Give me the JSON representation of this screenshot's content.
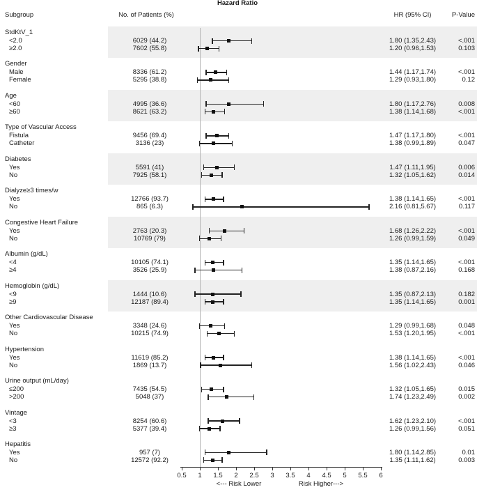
{
  "chart_data": {
    "type": "forest",
    "title": "Hazard Ratio",
    "columns": {
      "subgroup": "Subgroup",
      "patients": "No. of Patients (%)",
      "hr": "HR (95% CI)",
      "p": "P-Value"
    },
    "axis": {
      "min": 0.5,
      "max": 6,
      "ref_line": 1,
      "ticks": [
        "0.5",
        "1",
        "1.5",
        "2",
        "2.5",
        "3",
        "3.5",
        "4",
        "4.5",
        "5",
        "5.5",
        "6"
      ],
      "tick_values": [
        0.5,
        1,
        1.5,
        2,
        2.5,
        3,
        3.5,
        4,
        4.5,
        5,
        5.5,
        6
      ],
      "label_left": "<--- Risk Lower",
      "label_right": "Risk Higher--->"
    },
    "colors": {
      "band": "#efefef",
      "marker": "#111111",
      "ci": "#222222",
      "ref_line": "#b3b3b3"
    },
    "groups": [
      {
        "name": "StdKtV_1",
        "shaded": true,
        "rows": [
          {
            "label": "<2.0",
            "patients": "6029 (44.2)",
            "hr": 1.8,
            "lo": 1.35,
            "hi": 2.43,
            "hr_text": "1.80 (1.35,2.43)",
            "p": "<.001"
          },
          {
            "label": "≥2.0",
            "patients": "7602 (55.8)",
            "hr": 1.2,
            "lo": 0.96,
            "hi": 1.53,
            "hr_text": "1.20 (0.96,1.53)",
            "p": "0.103"
          }
        ]
      },
      {
        "name": "Gender",
        "shaded": false,
        "rows": [
          {
            "label": "Male",
            "patients": "8336 (61.2)",
            "hr": 1.44,
            "lo": 1.17,
            "hi": 1.74,
            "hr_text": "1.44 (1.17,1.74)",
            "p": "<.001"
          },
          {
            "label": "Female",
            "patients": "5295 (38.8)",
            "hr": 1.29,
            "lo": 0.93,
            "hi": 1.8,
            "hr_text": "1.29 (0.93,1.80)",
            "p": "0.12"
          }
        ]
      },
      {
        "name": "Age",
        "shaded": true,
        "rows": [
          {
            "label": "<60",
            "patients": "4995 (36.6)",
            "hr": 1.8,
            "lo": 1.17,
            "hi": 2.76,
            "hr_text": "1.80 (1.17,2.76)",
            "p": "0.008"
          },
          {
            "label": "≥60",
            "patients": "8621 (63.2)",
            "hr": 1.38,
            "lo": 1.14,
            "hi": 1.68,
            "hr_text": "1.38 (1.14,1.68)",
            "p": "<.001"
          }
        ]
      },
      {
        "name": "Type of Vascular Access",
        "shaded": false,
        "rows": [
          {
            "label": "Fistula",
            "patients": "9456 (69.4)",
            "hr": 1.47,
            "lo": 1.17,
            "hi": 1.8,
            "hr_text": "1.47 (1.17,1.80)",
            "p": "<.001"
          },
          {
            "label": "Catheter",
            "patients": "3136 (23)",
            "hr": 1.38,
            "lo": 0.99,
            "hi": 1.89,
            "hr_text": "1.38 (0.99,1.89)",
            "p": "0.047"
          }
        ]
      },
      {
        "name": "Diabetes",
        "shaded": true,
        "rows": [
          {
            "label": "Yes",
            "patients": "5591 (41)",
            "hr": 1.47,
            "lo": 1.11,
            "hi": 1.95,
            "hr_text": "1.47 (1.11,1.95)",
            "p": "0.006"
          },
          {
            "label": "No",
            "patients": "7925 (58.1)",
            "hr": 1.32,
            "lo": 1.05,
            "hi": 1.62,
            "hr_text": "1.32 (1.05,1.62)",
            "p": "0.014"
          }
        ]
      },
      {
        "name": "Dialyze≥3 times/w",
        "shaded": false,
        "rows": [
          {
            "label": "Yes",
            "patients": "12766 (93.7)",
            "hr": 1.38,
            "lo": 1.14,
            "hi": 1.65,
            "hr_text": "1.38 (1.14,1.65)",
            "p": "<.001"
          },
          {
            "label": "No",
            "patients": "865 (6.3)",
            "hr": 2.16,
            "lo": 0.81,
            "hi": 5.67,
            "hr_text": "2.16 (0.81,5.67)",
            "p": "0.117"
          }
        ]
      },
      {
        "name": "Congestive Heart Failure",
        "shaded": true,
        "rows": [
          {
            "label": "Yes",
            "patients": "2763 (20.3)",
            "hr": 1.68,
            "lo": 1.26,
            "hi": 2.22,
            "hr_text": "1.68 (1.26,2.22)",
            "p": "<.001"
          },
          {
            "label": "No",
            "patients": "10769 (79)",
            "hr": 1.26,
            "lo": 0.99,
            "hi": 1.59,
            "hr_text": "1.26 (0.99,1.59)",
            "p": "0.049"
          }
        ]
      },
      {
        "name": "Albumin (g/dL)",
        "shaded": false,
        "rows": [
          {
            "label": "<4",
            "patients": "10105 (74.1)",
            "hr": 1.35,
            "lo": 1.14,
            "hi": 1.65,
            "hr_text": "1.35 (1.14,1.65)",
            "p": "<.001"
          },
          {
            "label": "≥4",
            "patients": "3526 (25.9)",
            "hr": 1.38,
            "lo": 0.87,
            "hi": 2.16,
            "hr_text": "1.38 (0.87,2.16)",
            "p": "0.168"
          }
        ]
      },
      {
        "name": "Hemoglobin (g/dL)",
        "shaded": true,
        "rows": [
          {
            "label": "<9",
            "patients": "1444 (10.6)",
            "hr": 1.35,
            "lo": 0.87,
            "hi": 2.13,
            "hr_text": "1.35 (0.87,2.13)",
            "p": "0.182"
          },
          {
            "label": "≥9",
            "patients": "12187 (89.4)",
            "hr": 1.35,
            "lo": 1.14,
            "hi": 1.65,
            "hr_text": "1.35 (1.14,1.65)",
            "p": "0.001"
          }
        ]
      },
      {
        "name": "Other Cardiovascular Disease",
        "shaded": false,
        "rows": [
          {
            "label": "Yes",
            "patients": "3348 (24.6)",
            "hr": 1.29,
            "lo": 0.99,
            "hi": 1.68,
            "hr_text": "1.29 (0.99,1.68)",
            "p": "0.048"
          },
          {
            "label": "No",
            "patients": "10215 (74.9)",
            "hr": 1.53,
            "lo": 1.2,
            "hi": 1.95,
            "hr_text": "1.53 (1.20,1.95)",
            "p": "<.001"
          }
        ]
      },
      {
        "name": "Hypertension",
        "shaded": false,
        "rows": [
          {
            "label": "Yes",
            "patients": "11619 (85.2)",
            "hr": 1.38,
            "lo": 1.14,
            "hi": 1.65,
            "hr_text": "1.38 (1.14,1.65)",
            "p": "<.001"
          },
          {
            "label": "No",
            "patients": "1869 (13.7)",
            "hr": 1.56,
            "lo": 1.02,
            "hi": 2.43,
            "hr_text": "1.56 (1.02,2.43)",
            "p": "0.046"
          }
        ]
      },
      {
        "name": "Urine output (mL/day)",
        "shaded": false,
        "rows": [
          {
            "label": "≤200",
            "patients": "7435 (54.5)",
            "hr": 1.32,
            "lo": 1.05,
            "hi": 1.65,
            "hr_text": "1.32 (1.05,1.65)",
            "p": "0.015"
          },
          {
            "label": ">200",
            "patients": "5048 (37)",
            "hr": 1.74,
            "lo": 1.23,
            "hi": 2.49,
            "hr_text": "1.74 (1.23,2.49)",
            "p": "0.002"
          }
        ]
      },
      {
        "name": "Vintage",
        "shaded": false,
        "rows": [
          {
            "label": "<3",
            "patients": "8254 (60.6)",
            "hr": 1.62,
            "lo": 1.23,
            "hi": 2.1,
            "hr_text": "1.62 (1.23,2.10)",
            "p": "<.001"
          },
          {
            "label": "≥3",
            "patients": "5377 (39.4)",
            "hr": 1.26,
            "lo": 0.99,
            "hi": 1.56,
            "hr_text": "1.26 (0.99,1.56)",
            "p": "0.051"
          }
        ]
      },
      {
        "name": "Hepatitis",
        "shaded": false,
        "rows": [
          {
            "label": "Yes",
            "patients": "957 (7)",
            "hr": 1.8,
            "lo": 1.14,
            "hi": 2.85,
            "hr_text": "1.80 (1.14,2.85)",
            "p": "0.01"
          },
          {
            "label": "No",
            "patients": "12572 (92.2)",
            "hr": 1.35,
            "lo": 1.11,
            "hi": 1.62,
            "hr_text": "1.35 (1.11,1.62)",
            "p": "0.003"
          }
        ]
      }
    ]
  }
}
